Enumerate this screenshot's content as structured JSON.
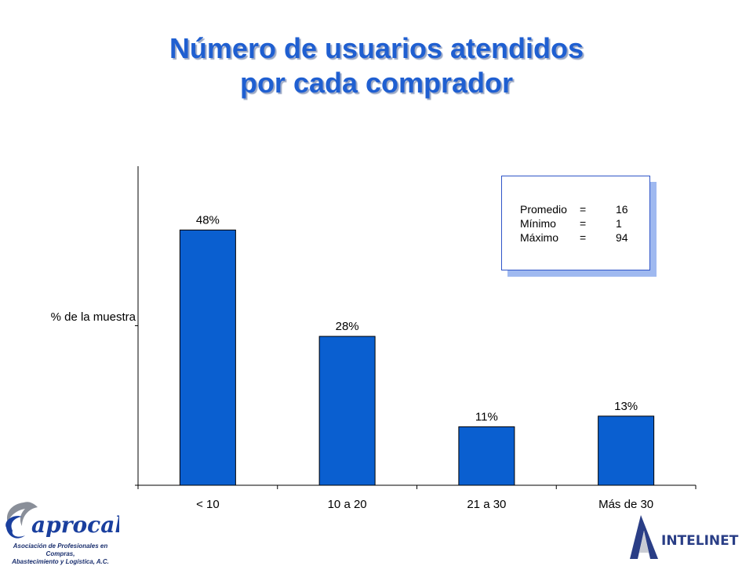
{
  "title": {
    "line1": "Número de usuarios atendidos",
    "line2": "por cada comprador"
  },
  "chart_data": {
    "type": "bar",
    "categories": [
      "< 10",
      "10 a 20",
      "21 a 30",
      "Más de 30"
    ],
    "values": [
      48,
      28,
      11,
      13
    ],
    "data_labels": [
      "48%",
      "28%",
      "11%",
      "13%"
    ],
    "ylabel": "% de la muestra",
    "xlabel": "",
    "ylim": [
      0,
      60
    ],
    "bar_color": "#0a5fd0",
    "grid": false
  },
  "stats": {
    "rows": [
      {
        "label": "Promedio",
        "eq": "=",
        "value": "16"
      },
      {
        "label": "Mínimo",
        "eq": "=",
        "value": "1"
      },
      {
        "label": "Máximo",
        "eq": "=",
        "value": "94"
      }
    ]
  },
  "logo_left": {
    "name": "aprocal",
    "subtitle_line1": "Asociación de Profesionales en Compras,",
    "subtitle_line2": "Abastecimiento y Logística, A.C."
  },
  "logo_right": {
    "name": "INTELINET"
  },
  "colors": {
    "title": "#1f5fd1",
    "bars": "#0a5fd0",
    "box_border": "#2f55c8",
    "box_shadow": "#9fb9f0"
  }
}
